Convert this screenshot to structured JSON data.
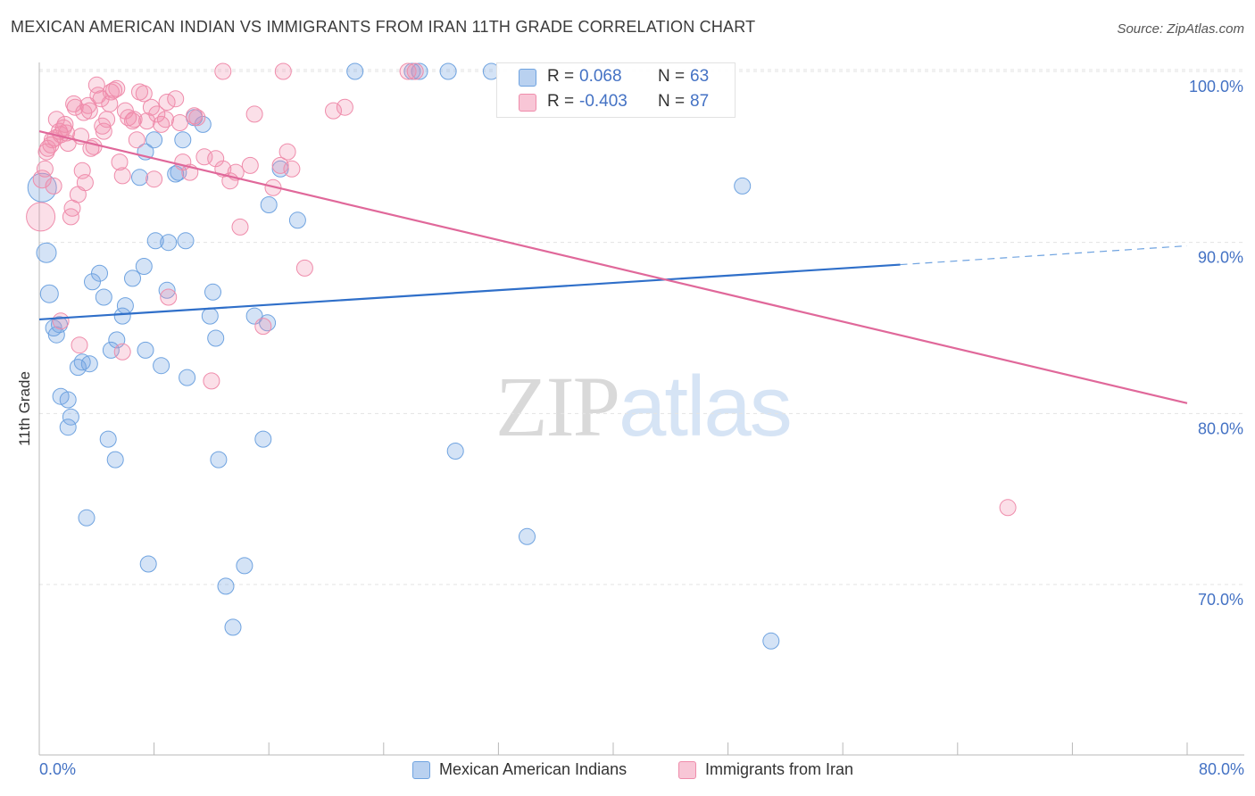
{
  "title": "MEXICAN AMERICAN INDIAN VS IMMIGRANTS FROM IRAN 11TH GRADE CORRELATION CHART",
  "source": "Source: ZipAtlas.com",
  "watermark": {
    "zip": "ZIP",
    "atlas": "atlas"
  },
  "legend_box": {
    "rows": [
      {
        "r_label": "R =",
        "r_value": "0.068",
        "n_label": "N =",
        "n_value": "63",
        "color": "#6fa3e0"
      },
      {
        "r_label": "R =",
        "r_value": "-0.403",
        "n_label": "N =",
        "n_value": "87",
        "color": "#ef8cab"
      }
    ]
  },
  "bottom_legend": [
    {
      "label": "Mexican American Indians",
      "color": "#6fa3e0"
    },
    {
      "label": "Immigrants from Iran",
      "color": "#ef8cab"
    }
  ],
  "chart_data": {
    "type": "scatter",
    "title": "MEXICAN AMERICAN INDIAN VS IMMIGRANTS FROM IRAN 11TH GRADE CORRELATION CHART",
    "xlabel": "",
    "ylabel": "11th Grade",
    "xlim": [
      0,
      80
    ],
    "ylim": [
      60,
      101.5
    ],
    "x_tick_labels": [
      "0.0%",
      "80.0%"
    ],
    "y_ticks": [
      70,
      80,
      90,
      100
    ],
    "y_tick_labels": [
      "70.0%",
      "80.0%",
      "90.0%",
      "100.0%"
    ],
    "grid": true,
    "series": [
      {
        "name": "Mexican American Indians",
        "color": "#6fa3e0",
        "r": 0.068,
        "n": 63,
        "trend": {
          "x0": 0,
          "y0": 85.5,
          "x1": 60,
          "y1": 88.7,
          "dashed_to": 80,
          "dashed_y": 89.8
        },
        "points": [
          [
            0.2,
            93.2,
            16
          ],
          [
            0.5,
            89.4,
            11
          ],
          [
            0.7,
            87.0,
            10
          ],
          [
            1.0,
            85.0,
            9
          ],
          [
            1.2,
            84.6,
            9
          ],
          [
            1.4,
            85.2,
            9
          ],
          [
            1.5,
            81.0,
            9
          ],
          [
            2.0,
            80.8,
            9
          ],
          [
            2.2,
            79.8,
            9
          ],
          [
            2.0,
            79.2,
            9
          ],
          [
            2.7,
            82.7,
            9
          ],
          [
            3.0,
            83.0,
            9
          ],
          [
            3.5,
            82.9,
            9
          ],
          [
            3.7,
            87.7,
            9
          ],
          [
            4.2,
            88.2,
            9
          ],
          [
            4.5,
            86.8,
            9
          ],
          [
            5.0,
            83.7,
            9
          ],
          [
            5.4,
            84.3,
            9
          ],
          [
            5.8,
            85.7,
            9
          ],
          [
            6.0,
            86.3,
            9
          ],
          [
            6.5,
            87.9,
            9
          ],
          [
            7.0,
            93.8,
            9
          ],
          [
            7.4,
            95.3,
            9
          ],
          [
            7.3,
            88.6,
            9
          ],
          [
            7.4,
            83.7,
            9
          ],
          [
            8.0,
            96.0,
            9
          ],
          [
            8.1,
            90.1,
            9
          ],
          [
            8.5,
            82.8,
            9
          ],
          [
            8.9,
            87.2,
            9
          ],
          [
            9.0,
            90.0,
            9
          ],
          [
            9.5,
            94.0,
            9
          ],
          [
            9.7,
            94.1,
            9
          ],
          [
            10.0,
            96.0,
            9
          ],
          [
            10.2,
            90.1,
            9
          ],
          [
            10.3,
            82.1,
            9
          ],
          [
            10.8,
            97.3,
            9
          ],
          [
            11.4,
            96.9,
            9
          ],
          [
            11.9,
            85.7,
            9
          ],
          [
            12.1,
            87.1,
            9
          ],
          [
            12.3,
            84.4,
            9
          ],
          [
            12.5,
            77.3,
            9
          ],
          [
            13.0,
            69.9,
            9
          ],
          [
            13.5,
            67.5,
            9
          ],
          [
            14.3,
            71.1,
            9
          ],
          [
            15.6,
            78.5,
            9
          ],
          [
            15.9,
            85.3,
            9
          ],
          [
            16.0,
            92.2,
            9
          ],
          [
            16.8,
            94.3,
            9
          ],
          [
            18.0,
            91.3,
            9
          ],
          [
            22.0,
            100.0,
            9
          ],
          [
            26.0,
            100.0,
            9
          ],
          [
            26.5,
            100.0,
            9
          ],
          [
            28.5,
            100.0,
            9
          ],
          [
            31.5,
            100.0,
            9
          ],
          [
            29.0,
            77.8,
            9
          ],
          [
            34.0,
            72.8,
            9
          ],
          [
            4.8,
            78.5,
            9
          ],
          [
            5.3,
            77.3,
            9
          ],
          [
            3.3,
            73.9,
            9
          ],
          [
            7.6,
            71.2,
            9
          ],
          [
            49.0,
            93.3,
            9
          ],
          [
            51.0,
            66.7,
            9
          ],
          [
            15.0,
            85.7,
            9
          ]
        ]
      },
      {
        "name": "Immigrants from Iran",
        "color": "#ef8cab",
        "r": -0.403,
        "n": 87,
        "trend": {
          "x0": 0,
          "y0": 96.5,
          "x1": 80,
          "y1": 80.6
        },
        "points": [
          [
            0.1,
            91.5,
            16
          ],
          [
            0.2,
            93.7,
            10
          ],
          [
            0.4,
            94.3,
            9
          ],
          [
            0.6,
            95.5,
            9
          ],
          [
            0.8,
            95.7,
            9
          ],
          [
            1.0,
            93.3,
            9
          ],
          [
            1.1,
            96.1,
            9
          ],
          [
            1.2,
            97.2,
            9
          ],
          [
            1.4,
            96.5,
            9
          ],
          [
            1.5,
            96.3,
            9
          ],
          [
            1.7,
            96.7,
            9
          ],
          [
            1.8,
            96.9,
            9
          ],
          [
            2.0,
            95.8,
            9
          ],
          [
            2.2,
            91.5,
            9
          ],
          [
            2.3,
            92.0,
            9
          ],
          [
            2.4,
            98.1,
            9
          ],
          [
            2.5,
            97.9,
            9
          ],
          [
            2.7,
            92.8,
            9
          ],
          [
            2.9,
            96.2,
            9
          ],
          [
            3.0,
            94.2,
            9
          ],
          [
            3.2,
            93.5,
            9
          ],
          [
            3.4,
            98.0,
            9
          ],
          [
            3.5,
            97.7,
            9
          ],
          [
            3.6,
            95.5,
            9
          ],
          [
            3.8,
            95.6,
            9
          ],
          [
            4.0,
            99.2,
            9
          ],
          [
            4.1,
            98.6,
            9
          ],
          [
            4.3,
            98.4,
            9
          ],
          [
            4.5,
            96.5,
            9
          ],
          [
            4.7,
            97.2,
            9
          ],
          [
            4.9,
            98.1,
            9
          ],
          [
            5.0,
            98.8,
            9
          ],
          [
            5.2,
            98.9,
            9
          ],
          [
            5.4,
            99.0,
            9
          ],
          [
            5.6,
            94.7,
            9
          ],
          [
            5.8,
            93.9,
            9
          ],
          [
            6.0,
            97.7,
            9
          ],
          [
            6.2,
            97.3,
            9
          ],
          [
            6.5,
            97.1,
            9
          ],
          [
            6.8,
            96.0,
            9
          ],
          [
            7.0,
            98.8,
            9
          ],
          [
            7.3,
            98.7,
            9
          ],
          [
            7.5,
            97.1,
            9
          ],
          [
            7.8,
            97.9,
            9
          ],
          [
            8.0,
            93.7,
            9
          ],
          [
            8.2,
            97.5,
            9
          ],
          [
            8.5,
            96.9,
            9
          ],
          [
            8.8,
            97.2,
            9
          ],
          [
            9.0,
            86.8,
            9
          ],
          [
            9.5,
            98.4,
            9
          ],
          [
            9.8,
            97.0,
            9
          ],
          [
            10.0,
            94.7,
            9
          ],
          [
            10.5,
            94.1,
            9
          ],
          [
            11.0,
            97.3,
            9
          ],
          [
            11.5,
            95.0,
            9
          ],
          [
            12.0,
            81.9,
            9
          ],
          [
            12.3,
            94.9,
            9
          ],
          [
            12.8,
            94.3,
            9
          ],
          [
            13.3,
            93.6,
            9
          ],
          [
            13.7,
            94.1,
            9
          ],
          [
            14.0,
            90.9,
            9
          ],
          [
            14.7,
            94.5,
            9
          ],
          [
            15.0,
            97.5,
            9
          ],
          [
            15.6,
            85.1,
            9
          ],
          [
            16.3,
            93.2,
            9
          ],
          [
            16.8,
            94.5,
            9
          ],
          [
            17.3,
            95.3,
            9
          ],
          [
            18.5,
            88.5,
            9
          ],
          [
            20.5,
            97.7,
            9
          ],
          [
            21.3,
            97.9,
            9
          ],
          [
            12.8,
            100.0,
            9
          ],
          [
            17.0,
            100.0,
            9
          ],
          [
            25.7,
            100.0,
            9
          ],
          [
            26.2,
            100.0,
            9
          ],
          [
            67.5,
            74.5,
            9
          ],
          [
            2.8,
            84.0,
            9
          ],
          [
            5.8,
            83.6,
            9
          ],
          [
            1.5,
            85.4,
            9
          ],
          [
            0.5,
            95.3,
            9
          ],
          [
            0.9,
            96.0,
            9
          ],
          [
            4.4,
            96.8,
            9
          ],
          [
            6.6,
            97.2,
            9
          ],
          [
            3.1,
            97.6,
            9
          ],
          [
            10.8,
            97.4,
            9
          ],
          [
            17.6,
            94.3,
            9
          ],
          [
            1.9,
            96.4,
            9
          ],
          [
            8.9,
            98.2,
            9
          ]
        ]
      }
    ]
  }
}
